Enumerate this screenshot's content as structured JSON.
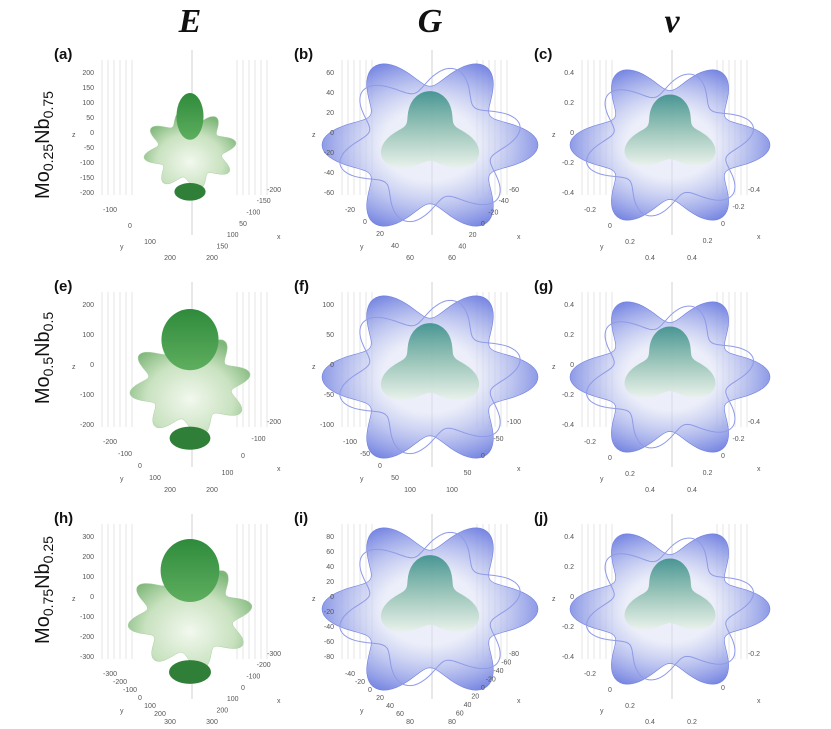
{
  "columns": [
    "E",
    "G",
    "ν"
  ],
  "rows": [
    {
      "element1": "Mo",
      "sub1": "0.25",
      "element2": "Nb",
      "sub2": "0.75"
    },
    {
      "element1": "Mo",
      "sub1": "0.5",
      "element2": "Nb",
      "sub2": "0.5"
    },
    {
      "element1": "Mo",
      "sub1": "0.75",
      "element2": "Nb",
      "sub2": "0.25"
    }
  ],
  "panels": [
    {
      "label": "(a)",
      "z_label": "z",
      "y_label": "y",
      "x_label": "x",
      "zticks": [
        "200",
        "150",
        "100",
        "50",
        "0",
        "-50",
        "-100",
        "-150",
        "-200"
      ],
      "yticks": [
        "-100",
        "0",
        "100",
        "200"
      ],
      "xticks": [
        "200",
        "150",
        "100",
        "50",
        "-100",
        "-150",
        "-200"
      ]
    },
    {
      "label": "(b)",
      "z_label": "z",
      "y_label": "y",
      "x_label": "x",
      "zticks": [
        "60",
        "40",
        "20",
        "0",
        "-20",
        "-40",
        "-60"
      ],
      "yticks": [
        "-20",
        "0",
        "20",
        "40",
        "60"
      ],
      "xticks": [
        "60",
        "40",
        "20",
        "0",
        "-20",
        "-40",
        "-60"
      ]
    },
    {
      "label": "(c)",
      "z_label": "z",
      "y_label": "y",
      "x_label": "x",
      "zticks": [
        "0.4",
        "0.2",
        "0",
        "-0.2",
        "-0.4"
      ],
      "yticks": [
        "-0.2",
        "0",
        "0.2",
        "0.4"
      ],
      "xticks": [
        "0.4",
        "0.2",
        "0",
        "-0.2",
        "-0.4"
      ]
    },
    {
      "label": "(e)",
      "z_label": "z",
      "y_label": "y",
      "x_label": "x",
      "zticks": [
        "200",
        "100",
        "0",
        "-100",
        "-200"
      ],
      "yticks": [
        "-200",
        "-100",
        "0",
        "100",
        "200"
      ],
      "xticks": [
        "200",
        "100",
        "0",
        "-100",
        "-200"
      ]
    },
    {
      "label": "(f)",
      "z_label": "z",
      "y_label": "y",
      "x_label": "x",
      "zticks": [
        "100",
        "50",
        "0",
        "-50",
        "-100"
      ],
      "yticks": [
        "-100",
        "-50",
        "0",
        "50",
        "100"
      ],
      "xticks": [
        "100",
        "50",
        "0",
        "-50",
        "-100"
      ]
    },
    {
      "label": "(g)",
      "z_label": "z",
      "y_label": "y",
      "x_label": "x",
      "zticks": [
        "0.4",
        "0.2",
        "0",
        "-0.2",
        "-0.4"
      ],
      "yticks": [
        "-0.2",
        "0",
        "0.2",
        "0.4"
      ],
      "xticks": [
        "0.4",
        "0.2",
        "0",
        "-0.2",
        "-0.4"
      ]
    },
    {
      "label": "(h)",
      "z_label": "z",
      "y_label": "y",
      "x_label": "x",
      "zticks": [
        "300",
        "200",
        "100",
        "0",
        "-100",
        "-200",
        "-300"
      ],
      "yticks": [
        "-300",
        "-200",
        "-100",
        "0",
        "100",
        "200",
        "300"
      ],
      "xticks": [
        "300",
        "200",
        "100",
        "0",
        "-100",
        "-200",
        "-300"
      ]
    },
    {
      "label": "(i)",
      "z_label": "z",
      "y_label": "y",
      "x_label": "x",
      "zticks": [
        "80",
        "60",
        "40",
        "20",
        "0",
        "-20",
        "-40",
        "-60",
        "-80"
      ],
      "yticks": [
        "-40",
        "-20",
        "0",
        "20",
        "40",
        "60",
        "80"
      ],
      "xticks": [
        "80",
        "60",
        "40",
        "20",
        "0",
        "-20",
        "-40",
        "-60",
        "-80"
      ]
    },
    {
      "label": "(j)",
      "z_label": "z",
      "y_label": "y",
      "x_label": "x",
      "zticks": [
        "0.4",
        "0.2",
        "0",
        "-0.2",
        "-0.4"
      ],
      "yticks": [
        "-0.2",
        "0",
        "0.2",
        "0.4"
      ],
      "xticks": [
        "0.2",
        "0",
        "-0.2"
      ]
    }
  ]
}
